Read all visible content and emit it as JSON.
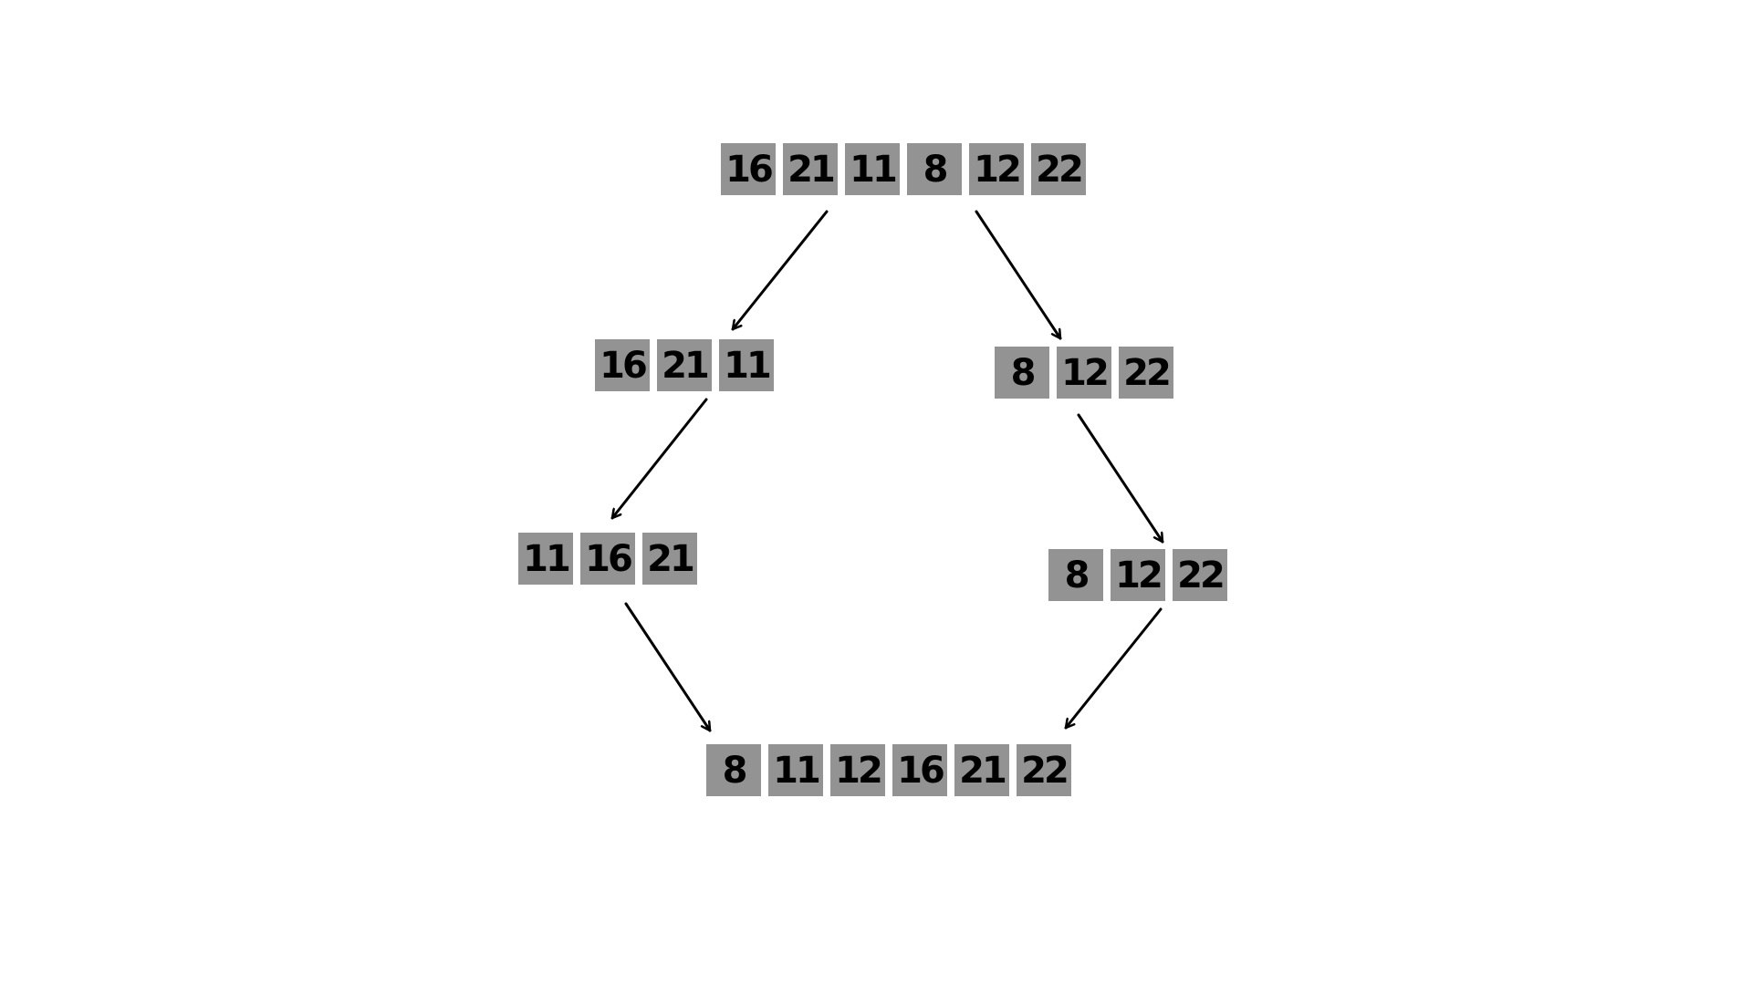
{
  "colors": {
    "cell": "#939393",
    "text": "#000000",
    "arrow": "#000000",
    "background": "#ffffff"
  },
  "diagram": {
    "rows": [
      {
        "id": "input",
        "values": [
          "16",
          "21",
          "11",
          "8",
          "12",
          "22"
        ]
      },
      {
        "id": "left-half",
        "values": [
          "16",
          "21",
          "11"
        ]
      },
      {
        "id": "right-half",
        "values": [
          "8",
          "12",
          "22"
        ]
      },
      {
        "id": "left-sorted",
        "values": [
          "11",
          "16",
          "21"
        ]
      },
      {
        "id": "right-sorted",
        "values": [
          "8",
          "12",
          "22"
        ]
      },
      {
        "id": "merged",
        "values": [
          "8",
          "11",
          "12",
          "16",
          "21",
          "22"
        ]
      }
    ],
    "arrows": [
      {
        "from": "input",
        "to": "left-half"
      },
      {
        "from": "input",
        "to": "right-half"
      },
      {
        "from": "left-half",
        "to": "left-sorted"
      },
      {
        "from": "right-half",
        "to": "right-sorted"
      },
      {
        "from": "left-sorted",
        "to": "merged"
      },
      {
        "from": "right-sorted",
        "to": "merged"
      }
    ]
  }
}
